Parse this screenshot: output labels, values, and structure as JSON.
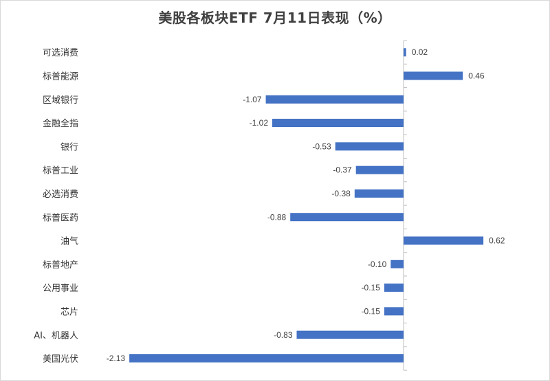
{
  "chart_data": {
    "type": "bar",
    "orientation": "horizontal",
    "title": "美股各板块ETF  7月11日表现（%）",
    "categories": [
      "可选消费",
      "标普能源",
      "区域银行",
      "金融全指",
      "银行",
      "标普工业",
      "必选消费",
      "标普医药",
      "油气",
      "标普地产",
      "公用事业",
      "芯片",
      "AI、机器人",
      "美国光伏"
    ],
    "values": [
      0.02,
      0.46,
      -1.07,
      -1.02,
      -0.53,
      -0.37,
      -0.38,
      -0.88,
      0.62,
      -0.1,
      -0.15,
      -0.15,
      -0.83,
      -2.13
    ],
    "value_labels": [
      "0.02",
      "0.46",
      "-1.07",
      "-1.02",
      "-0.53",
      "-0.37",
      "-0.38",
      "-0.88",
      "0.62",
      "-0.10",
      "-0.15",
      "-0.15",
      "-0.83",
      "-2.13"
    ],
    "bar_color": "#4472c4",
    "xlim": [
      -2.13,
      0.62
    ],
    "grid": false,
    "legend": "none"
  }
}
